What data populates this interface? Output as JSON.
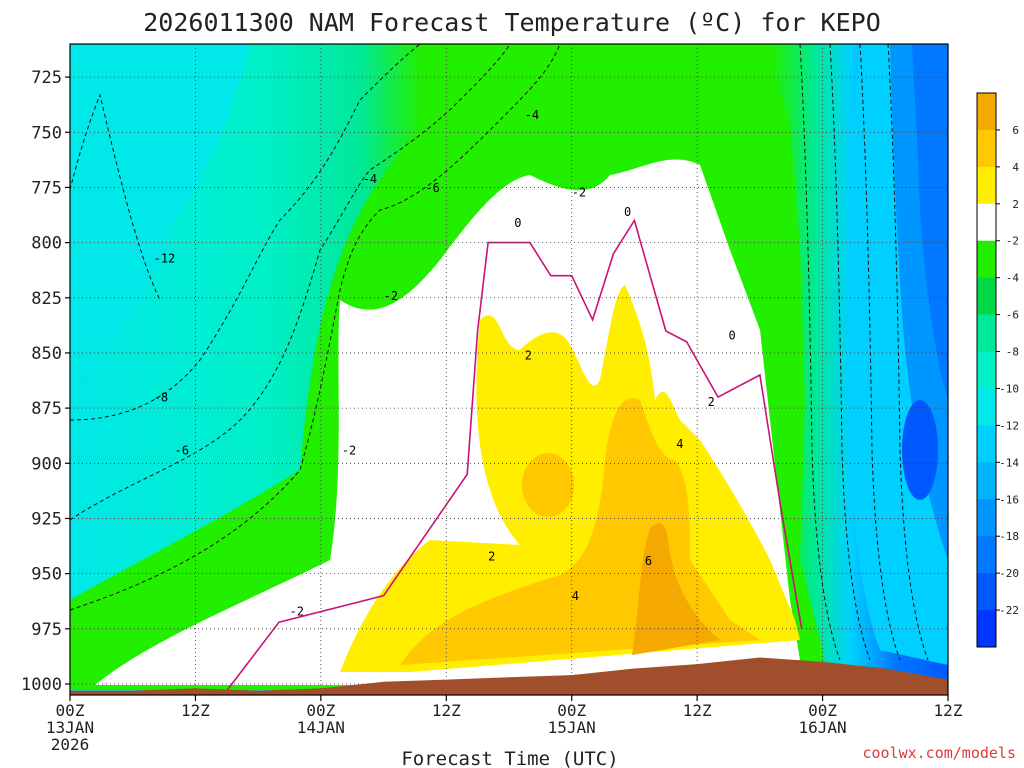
{
  "chart_data": {
    "type": "heatmap",
    "title": "2026011300 NAM Forecast Temperature (ºC) for KEPO",
    "xlabel": "Forecast Time (UTC)",
    "ylabel": "",
    "credit": "coolwx.com/models",
    "y_axis": {
      "range": [
        710,
        1005
      ],
      "inverted": true,
      "ticks": [
        725,
        750,
        775,
        800,
        825,
        850,
        875,
        900,
        925,
        950,
        975,
        1000
      ]
    },
    "x_axis": {
      "range_hours": [
        0,
        84
      ],
      "ticks": [
        {
          "hour": 0,
          "lines": [
            "00Z",
            "13JAN",
            "2026"
          ]
        },
        {
          "hour": 12,
          "lines": [
            "12Z"
          ]
        },
        {
          "hour": 24,
          "lines": [
            "00Z",
            "14JAN"
          ]
        },
        {
          "hour": 36,
          "lines": [
            "12Z"
          ]
        },
        {
          "hour": 48,
          "lines": [
            "00Z",
            "15JAN"
          ]
        },
        {
          "hour": 60,
          "lines": [
            "12Z"
          ]
        },
        {
          "hour": 72,
          "lines": [
            "00Z",
            "16JAN"
          ]
        },
        {
          "hour": 84,
          "lines": [
            "12Z"
          ]
        }
      ]
    },
    "grid": true,
    "colorbar": {
      "labels": [
        "6",
        "4",
        "2",
        "-2",
        "-4",
        "-6",
        "-8",
        "-10",
        "-12",
        "-14",
        "-16",
        "-18",
        "-20",
        "-22"
      ],
      "colors": [
        "#f5a800",
        "#ffc800",
        "#ffee00",
        "#ffffff",
        "#22ee00",
        "#00d848",
        "#00e89a",
        "#00f0c8",
        "#00e8e8",
        "#00d0ff",
        "#00b4ff",
        "#0096ff",
        "#0078ff",
        "#0058ff",
        "#0036ff"
      ]
    },
    "surface_pressure": [
      {
        "hour": 0,
        "p": 1003
      },
      {
        "hour": 6,
        "p": 1003
      },
      {
        "hour": 12,
        "p": 1002
      },
      {
        "hour": 18,
        "p": 1003
      },
      {
        "hour": 24,
        "p": 1002
      },
      {
        "hour": 30,
        "p": 999
      },
      {
        "hour": 36,
        "p": 998
      },
      {
        "hour": 42,
        "p": 997
      },
      {
        "hour": 48,
        "p": 996
      },
      {
        "hour": 54,
        "p": 993
      },
      {
        "hour": 60,
        "p": 991
      },
      {
        "hour": 66,
        "p": 988
      },
      {
        "hour": 72,
        "p": 990
      },
      {
        "hour": 78,
        "p": 993
      },
      {
        "hour": 84,
        "p": 998
      }
    ],
    "freezing_level_0C": [
      {
        "hour": 15,
        "p": 1003
      },
      {
        "hour": 20,
        "p": 972
      },
      {
        "hour": 30,
        "p": 960
      },
      {
        "hour": 38,
        "p": 905
      },
      {
        "hour": 39,
        "p": 840
      },
      {
        "hour": 40,
        "p": 800
      },
      {
        "hour": 44,
        "p": 800
      },
      {
        "hour": 46,
        "p": 815
      },
      {
        "hour": 48,
        "p": 815
      },
      {
        "hour": 50,
        "p": 835
      },
      {
        "hour": 52,
        "p": 805
      },
      {
        "hour": 54,
        "p": 790
      },
      {
        "hour": 57,
        "p": 840
      },
      {
        "hour": 59,
        "p": 845
      },
      {
        "hour": 62,
        "p": 870
      },
      {
        "hour": 66,
        "p": 860
      },
      {
        "hour": 68,
        "p": 920
      },
      {
        "hour": 70,
        "p": 975
      }
    ],
    "contour_labels": [
      {
        "text": "-4",
        "hour": 43.5,
        "p": 744
      },
      {
        "text": "-4",
        "hour": 28,
        "p": 773
      },
      {
        "text": "-6",
        "hour": 34,
        "p": 777
      },
      {
        "text": "-2",
        "hour": 48,
        "p": 779
      },
      {
        "text": "0",
        "hour": 42.5,
        "p": 793
      },
      {
        "text": "0",
        "hour": 53,
        "p": 788
      },
      {
        "text": "-12",
        "hour": 8,
        "p": 809
      },
      {
        "text": "-2",
        "hour": 30,
        "p": 826
      },
      {
        "text": "0",
        "hour": 63,
        "p": 844
      },
      {
        "text": "2",
        "hour": 43.5,
        "p": 853
      },
      {
        "text": "-8",
        "hour": 8,
        "p": 872
      },
      {
        "text": "2",
        "hour": 61,
        "p": 874
      },
      {
        "text": "4",
        "hour": 58,
        "p": 893
      },
      {
        "text": "-2",
        "hour": 26,
        "p": 896
      },
      {
        "text": "-6",
        "hour": 10,
        "p": 896
      },
      {
        "text": "2",
        "hour": 40,
        "p": 944
      },
      {
        "text": "6",
        "hour": 55,
        "p": 946
      },
      {
        "text": "4",
        "hour": 48,
        "p": 962
      },
      {
        "text": "-2",
        "hour": 21,
        "p": 969
      }
    ]
  }
}
